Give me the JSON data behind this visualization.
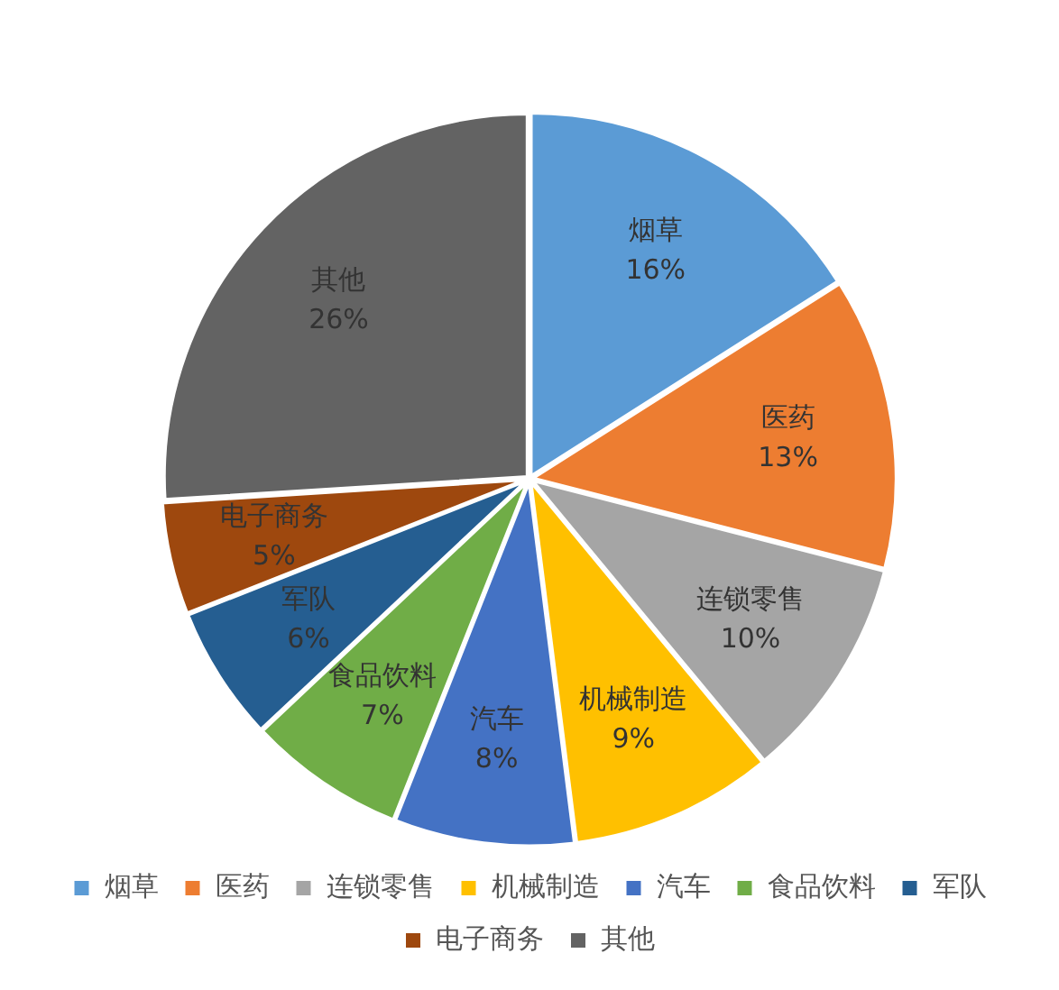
{
  "chart_data": {
    "type": "pie",
    "categories": [
      "烟草",
      "医药",
      "连锁零售",
      "机械制造",
      "汽车",
      "食品饮料",
      "军队",
      "电子商务",
      "其他"
    ],
    "values": [
      16,
      13,
      10,
      9,
      8,
      7,
      6,
      5,
      26
    ],
    "value_labels": [
      "16%",
      "13%",
      "10%",
      "9%",
      "8%",
      "7%",
      "6%",
      "5%",
      "26%"
    ],
    "colors": [
      "#5b9bd5",
      "#ed7d31",
      "#a5a5a5",
      "#ffc000",
      "#4472c4",
      "#70ad47",
      "#255e91",
      "#9e480e",
      "#636363"
    ],
    "legend": "bottom"
  }
}
